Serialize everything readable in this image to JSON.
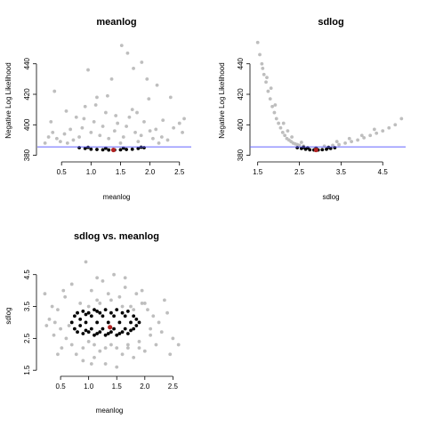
{
  "chart_data": [
    {
      "type": "scatter",
      "title": "meanlog",
      "xlabel": "meanlog",
      "ylabel": "Negative Log Likelihood",
      "xlim": [
        0.15,
        2.7
      ],
      "ylim": [
        378,
        455
      ],
      "xticks": [
        0.5,
        1.0,
        1.5,
        2.0,
        2.5
      ],
      "xtick_labels": [
        "0.5",
        "1.0",
        "1.5",
        "2.0",
        "2.5"
      ],
      "yticks": [
        380,
        400,
        420,
        440
      ],
      "ytick_labels": [
        "380",
        "400",
        "420",
        "440"
      ],
      "hline": 385.5,
      "mle": {
        "x": 1.38,
        "y": 383.5
      },
      "series": [
        {
          "color": "#bebebe",
          "points": [
            [
              0.22,
              388
            ],
            [
              0.28,
              392
            ],
            [
              0.35,
              395
            ],
            [
              0.42,
              391
            ],
            [
              0.48,
              389
            ],
            [
              0.55,
              394
            ],
            [
              0.6,
              388
            ],
            [
              0.65,
              397
            ],
            [
              0.7,
              390
            ],
            [
              0.75,
              405
            ],
            [
              0.8,
              392
            ],
            [
              0.85,
              398
            ],
            [
              0.9,
              412
            ],
            [
              0.95,
              436
            ],
            [
              1.0,
              395
            ],
            [
              1.05,
              402
            ],
            [
              1.1,
              418
            ],
            [
              1.15,
              393
            ],
            [
              1.2,
              399
            ],
            [
              1.25,
              408
            ],
            [
              1.3,
              391
            ],
            [
              1.35,
              430
            ],
            [
              1.4,
              396
            ],
            [
              1.45,
              401
            ],
            [
              1.5,
              388
            ],
            [
              1.55,
              392
            ],
            [
              1.6,
              399
            ],
            [
              1.65,
              405
            ],
            [
              1.7,
              410
            ],
            [
              1.75,
              395
            ],
            [
              1.8,
              389
            ],
            [
              1.85,
              393
            ],
            [
              1.9,
              402
            ],
            [
              1.95,
              430
            ],
            [
              2.0,
              396
            ],
            [
              2.05,
              391
            ],
            [
              2.1,
              397
            ],
            [
              2.15,
              388
            ],
            [
              2.2,
              392
            ],
            [
              2.3,
              390
            ],
            [
              2.4,
              398
            ],
            [
              2.5,
              401
            ],
            [
              2.55,
              395
            ],
            [
              0.38,
              422
            ],
            [
              1.52,
              452
            ],
            [
              1.62,
              447
            ],
            [
              1.72,
              437
            ],
            [
              1.86,
              441
            ],
            [
              2.12,
              426
            ],
            [
              2.35,
              418
            ],
            [
              0.58,
              409
            ],
            [
              1.08,
              413
            ],
            [
              1.28,
              419
            ],
            [
              1.98,
              417
            ],
            [
              0.88,
              404
            ],
            [
              1.42,
              406
            ],
            [
              1.78,
              408
            ],
            [
              2.22,
              403
            ],
            [
              0.32,
              402
            ],
            [
              2.58,
              404
            ]
          ]
        },
        {
          "color": "#000000",
          "points": [
            [
              0.8,
              385
            ],
            [
              0.9,
              384.5
            ],
            [
              1.0,
              384
            ],
            [
              1.1,
              383.8
            ],
            [
              1.2,
              383.6
            ],
            [
              1.3,
              383.5
            ],
            [
              1.4,
              383.5
            ],
            [
              1.5,
              383.6
            ],
            [
              1.6,
              383.8
            ],
            [
              1.7,
              384
            ],
            [
              1.8,
              384.5
            ],
            [
              1.9,
              385
            ],
            [
              0.95,
              385.2
            ],
            [
              1.25,
              384.6
            ],
            [
              1.55,
              384.7
            ],
            [
              1.85,
              385.3
            ]
          ]
        }
      ]
    },
    {
      "type": "scatter",
      "title": "sdlog",
      "xlabel": "sdlog",
      "ylabel": "Negative Log Likelihood",
      "xlim": [
        1.4,
        5.05
      ],
      "ylim": [
        378,
        455
      ],
      "xticks": [
        1.5,
        2.5,
        3.5,
        4.5
      ],
      "xtick_labels": [
        "1.5",
        "2.5",
        "3.5",
        "4.5"
      ],
      "yticks": [
        380,
        400,
        420,
        440
      ],
      "ytick_labels": [
        "380",
        "400",
        "420",
        "440"
      ],
      "hline": 385.5,
      "mle": {
        "x": 2.9,
        "y": 383.5
      },
      "series": [
        {
          "color": "#bebebe",
          "points": [
            [
              1.5,
              454
            ],
            [
              1.55,
              446
            ],
            [
              1.6,
              440
            ],
            [
              1.65,
              433
            ],
            [
              1.7,
              428
            ],
            [
              1.75,
              422
            ],
            [
              1.8,
              417
            ],
            [
              1.85,
              412
            ],
            [
              1.9,
              408
            ],
            [
              1.95,
              404
            ],
            [
              2.0,
              401
            ],
            [
              2.05,
              398
            ],
            [
              2.1,
              395
            ],
            [
              2.15,
              393
            ],
            [
              2.2,
              391
            ],
            [
              2.25,
              390
            ],
            [
              2.3,
              389
            ],
            [
              2.35,
              388
            ],
            [
              2.4,
              387.5
            ],
            [
              2.45,
              387
            ],
            [
              2.5,
              386.5
            ],
            [
              2.6,
              386
            ],
            [
              3.1,
              386
            ],
            [
              3.3,
              386.5
            ],
            [
              3.45,
              387
            ],
            [
              3.6,
              388
            ],
            [
              3.75,
              389
            ],
            [
              3.9,
              390
            ],
            [
              4.05,
              391.5
            ],
            [
              4.2,
              393
            ],
            [
              4.35,
              394.5
            ],
            [
              4.5,
              396
            ],
            [
              4.65,
              398
            ],
            [
              4.8,
              400
            ],
            [
              4.95,
              404
            ],
            [
              1.72,
              431
            ],
            [
              1.92,
              413
            ],
            [
              2.12,
              401
            ],
            [
              2.32,
              392
            ],
            [
              2.55,
              388.5
            ],
            [
              3.4,
              389
            ],
            [
              3.7,
              391
            ],
            [
              4.0,
              393
            ],
            [
              4.3,
              397
            ],
            [
              1.62,
              437
            ],
            [
              1.82,
              424
            ],
            [
              2.22,
              396
            ]
          ]
        },
        {
          "color": "#000000",
          "points": [
            [
              2.45,
              385
            ],
            [
              2.55,
              384.5
            ],
            [
              2.65,
              384
            ],
            [
              2.75,
              383.6
            ],
            [
              2.85,
              383.5
            ],
            [
              2.95,
              383.5
            ],
            [
              3.05,
              383.7
            ],
            [
              3.15,
              384
            ],
            [
              3.25,
              384.5
            ],
            [
              3.35,
              385
            ],
            [
              2.6,
              385.3
            ],
            [
              2.9,
              384.8
            ],
            [
              3.2,
              385.2
            ],
            [
              2.7,
              384.9
            ]
          ]
        }
      ]
    },
    {
      "type": "scatter",
      "title": "sdlog vs. meanlog",
      "xlabel": "meanlog",
      "ylabel": "sdlog",
      "xlim": [
        0.15,
        2.7
      ],
      "ylim": [
        1.45,
        5.05
      ],
      "xticks": [
        0.5,
        1.0,
        1.5,
        2.0,
        2.5
      ],
      "xtick_labels": [
        "0.5",
        "1.0",
        "1.5",
        "2.0",
        "2.5"
      ],
      "yticks": [
        1.5,
        2.5,
        3.5,
        4.5
      ],
      "ytick_labels": [
        "1.5",
        "2.5",
        "3.5",
        "4.5"
      ],
      "mle": {
        "x": 1.38,
        "y": 2.85
      },
      "series": [
        {
          "color": "#bebebe",
          "points": [
            [
              0.22,
              3.9
            ],
            [
              0.3,
              3.1
            ],
            [
              0.38,
              2.6
            ],
            [
              0.45,
              3.4
            ],
            [
              0.52,
              2.2
            ],
            [
              0.58,
              3.8
            ],
            [
              0.65,
              2.9
            ],
            [
              0.7,
              4.2
            ],
            [
              0.78,
              2.0
            ],
            [
              0.85,
              3.6
            ],
            [
              0.9,
              1.8
            ],
            [
              0.95,
              4.9
            ],
            [
              1.0,
              2.4
            ],
            [
              1.05,
              4.0
            ],
            [
              1.1,
              1.9
            ],
            [
              1.15,
              3.7
            ],
            [
              1.2,
              2.1
            ],
            [
              1.25,
              4.3
            ],
            [
              1.3,
              1.7
            ],
            [
              1.35,
              3.9
            ],
            [
              1.4,
              2.3
            ],
            [
              1.45,
              4.5
            ],
            [
              1.5,
              1.6
            ],
            [
              1.55,
              3.8
            ],
            [
              1.6,
              2.0
            ],
            [
              1.65,
              4.1
            ],
            [
              1.7,
              2.2
            ],
            [
              1.75,
              3.5
            ],
            [
              1.8,
              1.9
            ],
            [
              1.85,
              3.9
            ],
            [
              1.9,
              2.4
            ],
            [
              1.95,
              3.6
            ],
            [
              2.0,
              2.1
            ],
            [
              2.05,
              3.4
            ],
            [
              2.1,
              2.6
            ],
            [
              2.15,
              3.2
            ],
            [
              2.2,
              2.3
            ],
            [
              2.25,
              3.0
            ],
            [
              2.3,
              2.7
            ],
            [
              2.4,
              3.3
            ],
            [
              2.5,
              2.5
            ],
            [
              2.6,
              2.3
            ],
            [
              0.4,
              3.0
            ],
            [
              0.6,
              2.5
            ],
            [
              0.8,
              3.3
            ],
            [
              1.0,
              3.5
            ],
            [
              1.2,
              3.6
            ],
            [
              1.4,
              3.7
            ],
            [
              1.6,
              3.5
            ],
            [
              1.8,
              3.4
            ],
            [
              2.0,
              3.6
            ],
            [
              0.7,
              2.3
            ],
            [
              0.9,
              2.2
            ],
            [
              1.1,
              2.3
            ],
            [
              1.3,
              2.2
            ],
            [
              1.5,
              2.2
            ],
            [
              1.7,
              2.3
            ],
            [
              1.9,
              2.2
            ],
            [
              2.1,
              2.8
            ],
            [
              0.5,
              2.8
            ],
            [
              0.25,
              2.9
            ],
            [
              0.55,
              4.0
            ],
            [
              1.15,
              4.4
            ],
            [
              1.65,
              4.4
            ],
            [
              1.95,
              4.0
            ],
            [
              2.45,
              2.0
            ],
            [
              0.45,
              2.0
            ],
            [
              2.35,
              3.7
            ],
            [
              0.35,
              3.5
            ],
            [
              1.05,
              1.7
            ]
          ]
        },
        {
          "color": "#000000",
          "points": [
            [
              0.7,
              3.0
            ],
            [
              0.75,
              3.2
            ],
            [
              0.75,
              2.8
            ],
            [
              0.8,
              3.3
            ],
            [
              0.8,
              2.7
            ],
            [
              0.85,
              3.1
            ],
            [
              0.85,
              2.9
            ],
            [
              0.9,
              3.35
            ],
            [
              0.9,
              2.65
            ],
            [
              0.95,
              3.0
            ],
            [
              1.0,
              3.3
            ],
            [
              1.0,
              2.7
            ],
            [
              1.05,
              3.2
            ],
            [
              1.05,
              2.8
            ],
            [
              1.1,
              3.4
            ],
            [
              1.1,
              2.6
            ],
            [
              1.15,
              3.0
            ],
            [
              1.2,
              3.3
            ],
            [
              1.2,
              2.7
            ],
            [
              1.25,
              3.2
            ],
            [
              1.25,
              2.8
            ],
            [
              1.3,
              3.4
            ],
            [
              1.3,
              2.6
            ],
            [
              1.35,
              3.0
            ],
            [
              1.4,
              3.3
            ],
            [
              1.4,
              2.7
            ],
            [
              1.45,
              3.2
            ],
            [
              1.45,
              2.8
            ],
            [
              1.5,
              3.4
            ],
            [
              1.5,
              2.6
            ],
            [
              1.55,
              3.0
            ],
            [
              1.6,
              3.3
            ],
            [
              1.6,
              2.7
            ],
            [
              1.65,
              3.2
            ],
            [
              1.65,
              2.8
            ],
            [
              1.7,
              3.35
            ],
            [
              1.7,
              2.65
            ],
            [
              1.75,
              3.0
            ],
            [
              1.8,
              3.2
            ],
            [
              1.8,
              2.8
            ],
            [
              1.85,
              3.1
            ],
            [
              1.85,
              2.9
            ],
            [
              1.9,
              3.0
            ],
            [
              0.95,
              2.75
            ],
            [
              1.15,
              2.65
            ],
            [
              1.35,
              2.65
            ],
            [
              1.55,
              2.65
            ],
            [
              1.75,
              2.75
            ],
            [
              0.95,
              3.25
            ],
            [
              1.15,
              3.35
            ]
          ]
        }
      ]
    }
  ]
}
